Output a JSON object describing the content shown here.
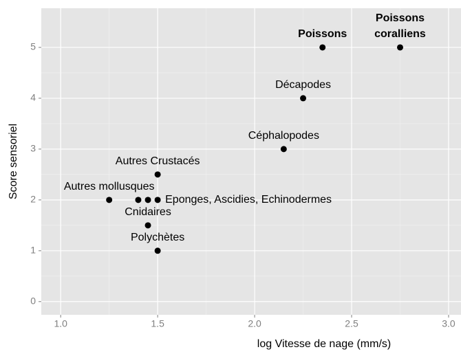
{
  "chart_data": {
    "type": "scatter",
    "x_label": "log Vitesse de nage (mm/s)",
    "y_label": "Score sensoriel",
    "x": [
      1.25,
      1.4,
      1.45,
      1.5,
      1.5,
      1.45,
      1.5,
      2.15,
      2.25,
      2.35,
      2.75
    ],
    "values": [
      2,
      2,
      2,
      2,
      2.5,
      1.5,
      1,
      3,
      4,
      5,
      5
    ],
    "labels": [
      "Autres mollusques",
      null,
      null,
      "Eponges, Ascidies, Echinodermes",
      "Autres Crustacés",
      "Cnidaires",
      "Polychètes",
      "Céphalopodes",
      "Décapodes",
      "Poissons",
      "Poissons\ncoralliens"
    ],
    "color": "#000000",
    "xlim": [
      0.9,
      3.064
    ],
    "ylim": [
      -0.26,
      5.77
    ],
    "xticks": [
      {
        "value": 1.0,
        "label": "1.0"
      },
      1.5,
      {
        "value": 2.0,
        "label": "2.0"
      },
      2.5,
      {
        "value": 3.0,
        "label": "3.0"
      }
    ],
    "yticks": [
      0,
      1,
      2,
      3,
      4,
      5
    ],
    "grid": true
  }
}
